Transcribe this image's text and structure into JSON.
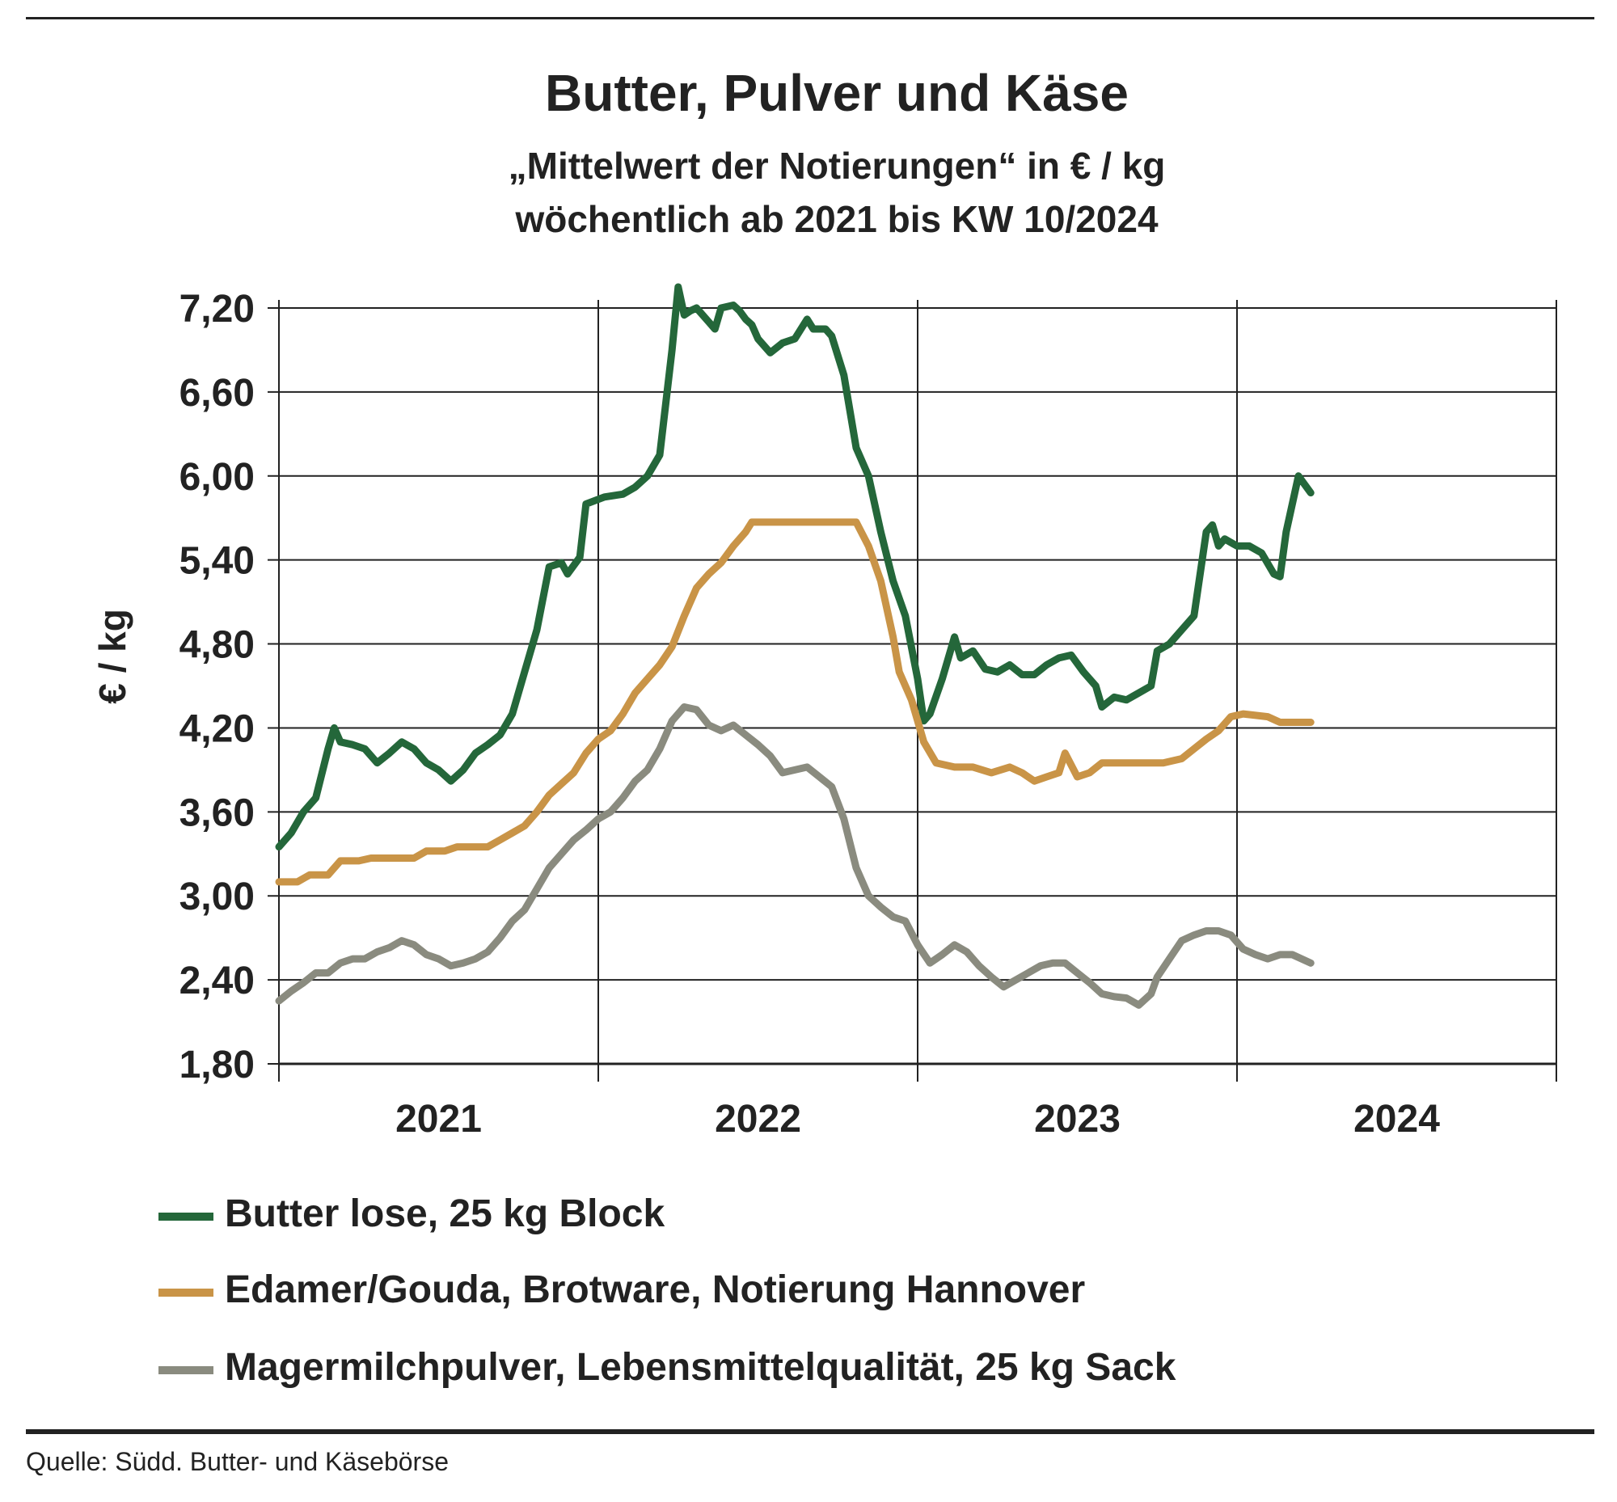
{
  "chart_data": {
    "type": "line",
    "title": "Butter, Pulver und Käse",
    "subtitle": [
      "„Mittelwert der Notierungen“ in € / kg",
      "wöchentlich ab 2021 bis KW 10/2024"
    ],
    "ylabel": "€ / kg",
    "xlabel": "",
    "ylim": [
      1.8,
      7.2
    ],
    "y_ticks": [
      "7,20",
      "6,60",
      "6,00",
      "5,40",
      "4,80",
      "4,20",
      "3,60",
      "3,00",
      "2,40",
      "1,80"
    ],
    "x_ticks": [
      "2021",
      "2022",
      "2023",
      "2024"
    ],
    "xlim": [
      0,
      208
    ],
    "grid": true,
    "series": [
      {
        "name": "Butter lose, 25 kg Block",
        "color": "#24673a",
        "points": [
          [
            0,
            3.35
          ],
          [
            2,
            3.45
          ],
          [
            4,
            3.6
          ],
          [
            6,
            3.7
          ],
          [
            8,
            4.05
          ],
          [
            9,
            4.2
          ],
          [
            10,
            4.1
          ],
          [
            12,
            4.08
          ],
          [
            14,
            4.05
          ],
          [
            16,
            3.95
          ],
          [
            18,
            4.02
          ],
          [
            20,
            4.1
          ],
          [
            22,
            4.05
          ],
          [
            24,
            3.95
          ],
          [
            26,
            3.9
          ],
          [
            28,
            3.82
          ],
          [
            30,
            3.9
          ],
          [
            32,
            4.02
          ],
          [
            34,
            4.08
          ],
          [
            36,
            4.15
          ],
          [
            38,
            4.3
          ],
          [
            40,
            4.6
          ],
          [
            42,
            4.9
          ],
          [
            44,
            5.35
          ],
          [
            46,
            5.38
          ],
          [
            47,
            5.3
          ],
          [
            49,
            5.42
          ],
          [
            50,
            5.8
          ],
          [
            53,
            5.85
          ],
          [
            56,
            5.87
          ],
          [
            58,
            5.92
          ],
          [
            60,
            6.0
          ],
          [
            62,
            6.15
          ],
          [
            64,
            6.9
          ],
          [
            65,
            7.35
          ],
          [
            66,
            7.15
          ],
          [
            67,
            7.18
          ],
          [
            68,
            7.2
          ],
          [
            70,
            7.1
          ],
          [
            71,
            7.05
          ],
          [
            72,
            7.2
          ],
          [
            74,
            7.22
          ],
          [
            75,
            7.18
          ],
          [
            76,
            7.12
          ],
          [
            77,
            7.08
          ],
          [
            78,
            6.98
          ],
          [
            80,
            6.88
          ],
          [
            82,
            6.95
          ],
          [
            84,
            6.98
          ],
          [
            86,
            7.12
          ],
          [
            87,
            7.05
          ],
          [
            89,
            7.05
          ],
          [
            90,
            7.0
          ],
          [
            92,
            6.72
          ],
          [
            94,
            6.2
          ],
          [
            96,
            6.0
          ],
          [
            98,
            5.6
          ],
          [
            100,
            5.25
          ],
          [
            102,
            5.0
          ],
          [
            104,
            4.55
          ],
          [
            105,
            4.25
          ],
          [
            106,
            4.3
          ],
          [
            108,
            4.55
          ],
          [
            110,
            4.85
          ],
          [
            111,
            4.7
          ],
          [
            113,
            4.75
          ],
          [
            115,
            4.62
          ],
          [
            117,
            4.6
          ],
          [
            119,
            4.65
          ],
          [
            121,
            4.58
          ],
          [
            123,
            4.58
          ],
          [
            125,
            4.65
          ],
          [
            127,
            4.7
          ],
          [
            129,
            4.72
          ],
          [
            131,
            4.6
          ],
          [
            133,
            4.5
          ],
          [
            134,
            4.35
          ],
          [
            136,
            4.42
          ],
          [
            138,
            4.4
          ],
          [
            140,
            4.45
          ],
          [
            142,
            4.5
          ],
          [
            143,
            4.75
          ],
          [
            145,
            4.8
          ],
          [
            147,
            4.9
          ],
          [
            149,
            5.0
          ],
          [
            151,
            5.6
          ],
          [
            152,
            5.65
          ],
          [
            153,
            5.5
          ],
          [
            154,
            5.55
          ],
          [
            156,
            5.5
          ],
          [
            158,
            5.5
          ],
          [
            160,
            5.45
          ],
          [
            162,
            5.3
          ],
          [
            163,
            5.28
          ],
          [
            164,
            5.6
          ],
          [
            166,
            6.0
          ],
          [
            168,
            5.88
          ]
        ]
      },
      {
        "name": "Edamer/Gouda, Brotware, Notierung Hannover",
        "color": "#c99447",
        "points": [
          [
            0,
            3.1
          ],
          [
            3,
            3.1
          ],
          [
            5,
            3.15
          ],
          [
            8,
            3.15
          ],
          [
            10,
            3.25
          ],
          [
            13,
            3.25
          ],
          [
            15,
            3.27
          ],
          [
            20,
            3.27
          ],
          [
            22,
            3.27
          ],
          [
            24,
            3.32
          ],
          [
            27,
            3.32
          ],
          [
            29,
            3.35
          ],
          [
            34,
            3.35
          ],
          [
            36,
            3.4
          ],
          [
            38,
            3.45
          ],
          [
            40,
            3.5
          ],
          [
            42,
            3.6
          ],
          [
            44,
            3.72
          ],
          [
            46,
            3.8
          ],
          [
            48,
            3.88
          ],
          [
            50,
            4.02
          ],
          [
            52,
            4.12
          ],
          [
            54,
            4.18
          ],
          [
            56,
            4.3
          ],
          [
            58,
            4.45
          ],
          [
            60,
            4.55
          ],
          [
            62,
            4.65
          ],
          [
            64,
            4.78
          ],
          [
            66,
            5.0
          ],
          [
            68,
            5.2
          ],
          [
            70,
            5.3
          ],
          [
            72,
            5.38
          ],
          [
            74,
            5.5
          ],
          [
            76,
            5.6
          ],
          [
            77,
            5.67
          ],
          [
            80,
            5.67
          ],
          [
            85,
            5.67
          ],
          [
            90,
            5.67
          ],
          [
            94,
            5.67
          ],
          [
            96,
            5.5
          ],
          [
            98,
            5.25
          ],
          [
            100,
            4.85
          ],
          [
            101,
            4.6
          ],
          [
            103,
            4.4
          ],
          [
            105,
            4.1
          ],
          [
            107,
            3.95
          ],
          [
            110,
            3.92
          ],
          [
            113,
            3.92
          ],
          [
            116,
            3.88
          ],
          [
            119,
            3.92
          ],
          [
            121,
            3.88
          ],
          [
            123,
            3.82
          ],
          [
            125,
            3.85
          ],
          [
            127,
            3.88
          ],
          [
            128,
            4.02
          ],
          [
            130,
            3.85
          ],
          [
            132,
            3.88
          ],
          [
            134,
            3.95
          ],
          [
            137,
            3.95
          ],
          [
            140,
            3.95
          ],
          [
            144,
            3.95
          ],
          [
            147,
            3.98
          ],
          [
            149,
            4.05
          ],
          [
            151,
            4.12
          ],
          [
            153,
            4.18
          ],
          [
            155,
            4.28
          ],
          [
            157,
            4.3
          ],
          [
            161,
            4.28
          ],
          [
            163,
            4.24
          ],
          [
            168,
            4.24
          ]
        ]
      },
      {
        "name": "Magermilchpulver, Lebensmittelqualität, 25 kg Sack",
        "color": "#8a8b7f",
        "points": [
          [
            0,
            2.25
          ],
          [
            2,
            2.32
          ],
          [
            4,
            2.38
          ],
          [
            6,
            2.45
          ],
          [
            8,
            2.45
          ],
          [
            10,
            2.52
          ],
          [
            12,
            2.55
          ],
          [
            14,
            2.55
          ],
          [
            16,
            2.6
          ],
          [
            18,
            2.63
          ],
          [
            20,
            2.68
          ],
          [
            22,
            2.65
          ],
          [
            24,
            2.58
          ],
          [
            26,
            2.55
          ],
          [
            28,
            2.5
          ],
          [
            30,
            2.52
          ],
          [
            32,
            2.55
          ],
          [
            34,
            2.6
          ],
          [
            36,
            2.7
          ],
          [
            38,
            2.82
          ],
          [
            40,
            2.9
          ],
          [
            42,
            3.05
          ],
          [
            44,
            3.2
          ],
          [
            46,
            3.3
          ],
          [
            48,
            3.4
          ],
          [
            50,
            3.47
          ],
          [
            52,
            3.55
          ],
          [
            54,
            3.6
          ],
          [
            56,
            3.7
          ],
          [
            58,
            3.82
          ],
          [
            60,
            3.9
          ],
          [
            62,
            4.05
          ],
          [
            64,
            4.25
          ],
          [
            66,
            4.35
          ],
          [
            68,
            4.33
          ],
          [
            70,
            4.22
          ],
          [
            72,
            4.18
          ],
          [
            74,
            4.22
          ],
          [
            76,
            4.15
          ],
          [
            78,
            4.08
          ],
          [
            80,
            4.0
          ],
          [
            82,
            3.88
          ],
          [
            84,
            3.9
          ],
          [
            86,
            3.92
          ],
          [
            88,
            3.85
          ],
          [
            90,
            3.78
          ],
          [
            92,
            3.55
          ],
          [
            94,
            3.2
          ],
          [
            96,
            3.0
          ],
          [
            98,
            2.92
          ],
          [
            100,
            2.85
          ],
          [
            102,
            2.82
          ],
          [
            104,
            2.65
          ],
          [
            106,
            2.52
          ],
          [
            108,
            2.58
          ],
          [
            110,
            2.65
          ],
          [
            112,
            2.6
          ],
          [
            114,
            2.5
          ],
          [
            116,
            2.42
          ],
          [
            118,
            2.35
          ],
          [
            120,
            2.4
          ],
          [
            122,
            2.45
          ],
          [
            124,
            2.5
          ],
          [
            126,
            2.52
          ],
          [
            128,
            2.52
          ],
          [
            130,
            2.45
          ],
          [
            132,
            2.38
          ],
          [
            134,
            2.3
          ],
          [
            136,
            2.28
          ],
          [
            138,
            2.27
          ],
          [
            140,
            2.22
          ],
          [
            142,
            2.3
          ],
          [
            143,
            2.42
          ],
          [
            145,
            2.55
          ],
          [
            147,
            2.68
          ],
          [
            149,
            2.72
          ],
          [
            151,
            2.75
          ],
          [
            153,
            2.75
          ],
          [
            155,
            2.72
          ],
          [
            157,
            2.62
          ],
          [
            159,
            2.58
          ],
          [
            161,
            2.55
          ],
          [
            163,
            2.58
          ],
          [
            165,
            2.58
          ],
          [
            168,
            2.52
          ]
        ]
      }
    ]
  },
  "source": "Quelle: Südd. Butter- und Käsebörse"
}
